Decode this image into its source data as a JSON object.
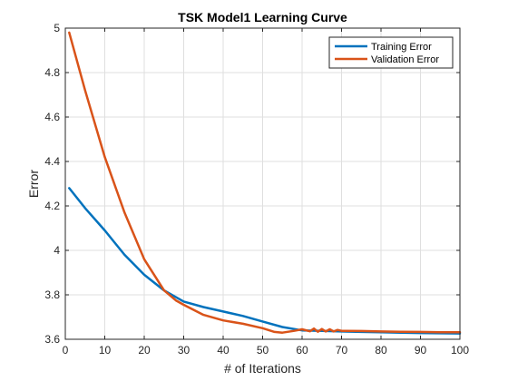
{
  "chart_data": {
    "type": "line",
    "title": "TSK Model1 Learning Curve",
    "xlabel": "# of Iterations",
    "ylabel": "Error",
    "xlim": [
      0,
      100
    ],
    "ylim": [
      3.6,
      5
    ],
    "xticks": [
      0,
      10,
      20,
      30,
      40,
      50,
      60,
      70,
      80,
      90,
      100
    ],
    "yticks": [
      3.6,
      3.8,
      4,
      4.2,
      4.4,
      4.6,
      4.8,
      5
    ],
    "xtick_labels": [
      "0",
      "10",
      "20",
      "30",
      "40",
      "50",
      "60",
      "70",
      "80",
      "90",
      "100"
    ],
    "ytick_labels": [
      "3.6",
      "3.8",
      "4",
      "4.2",
      "4.4",
      "4.6",
      "4.8",
      "5"
    ],
    "grid": true,
    "legend_position": "top-right",
    "series": [
      {
        "name": "Training Error",
        "color": "#0072bd",
        "x": [
          1,
          5,
          10,
          15,
          20,
          25,
          30,
          35,
          40,
          45,
          50,
          55,
          60,
          65,
          70,
          75,
          80,
          85,
          90,
          95,
          100
        ],
        "y": [
          4.28,
          4.19,
          4.09,
          3.98,
          3.89,
          3.82,
          3.77,
          3.745,
          3.725,
          3.705,
          3.68,
          3.655,
          3.64,
          3.638,
          3.635,
          3.633,
          3.632,
          3.63,
          3.628,
          3.627,
          3.626
        ]
      },
      {
        "name": "Validation Error",
        "color": "#d95319",
        "x": [
          1,
          5,
          10,
          15,
          20,
          25,
          28,
          30,
          35,
          40,
          45,
          50,
          53,
          55,
          58,
          60,
          62,
          63,
          64,
          65,
          66,
          67,
          68,
          69,
          70,
          75,
          80,
          85,
          90,
          95,
          100
        ],
        "y": [
          4.98,
          4.72,
          4.42,
          4.17,
          3.96,
          3.82,
          3.775,
          3.755,
          3.71,
          3.685,
          3.67,
          3.65,
          3.633,
          3.63,
          3.638,
          3.645,
          3.636,
          3.648,
          3.634,
          3.646,
          3.635,
          3.645,
          3.635,
          3.642,
          3.638,
          3.637,
          3.635,
          3.634,
          3.633,
          3.632,
          3.632
        ]
      }
    ]
  }
}
